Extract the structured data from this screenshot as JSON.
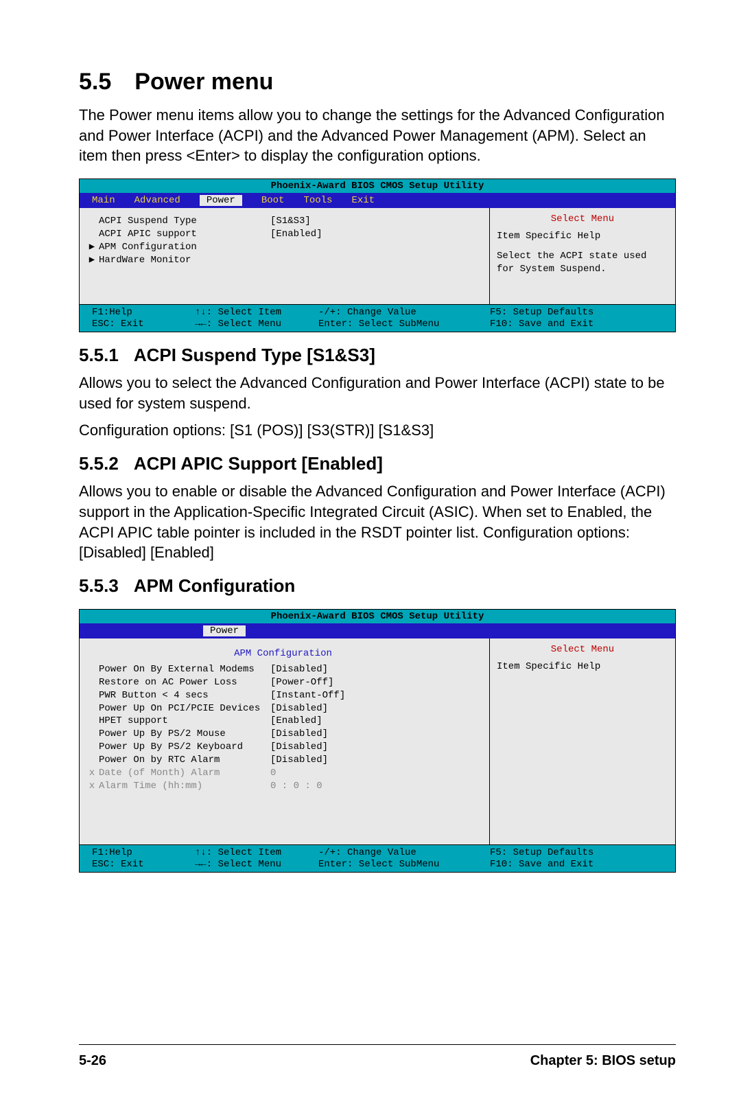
{
  "doc": {
    "section_num": "5.5",
    "section_title": "Power menu",
    "intro": "The Power menu items allow you to change the settings for the Advanced Configuration and Power Interface (ACPI) and the Advanced Power Management (APM). Select an item then press <Enter> to display the configuration options.",
    "sub1_num": "5.5.1",
    "sub1_title": "ACPI Suspend Type [S1&S3]",
    "sub1_p1": "Allows you to select the Advanced Configuration and Power Interface (ACPI) state to be used for system suspend.",
    "sub1_p2": "Configuration options: [S1 (POS)] [S3(STR)] [S1&S3]",
    "sub2_num": "5.5.2",
    "sub2_title": "ACPI APIC Support [Enabled]",
    "sub2_p1": "Allows you to enable or disable the Advanced Configuration and Power Interface (ACPI) support in the Application-Specific Integrated Circuit (ASIC). When set to Enabled, the ACPI APIC table pointer is included in the RSDT pointer list. Configuration options: [Disabled] [Enabled]",
    "sub3_num": "5.5.3",
    "sub3_title": "APM Configuration",
    "page_num": "5-26",
    "chapter": "Chapter 5: BIOS setup"
  },
  "bios1": {
    "title": "Phoenix-Award BIOS CMOS Setup Utility",
    "tabs": [
      "Main",
      "Advanced",
      "Power",
      "Boot",
      "Tools",
      "Exit"
    ],
    "active_tab": "Power",
    "items": [
      {
        "marker": "",
        "label": "ACPI Suspend Type",
        "value": "[S1&S3]"
      },
      {
        "marker": "",
        "label": "ACPI APIC support",
        "value": "[Enabled]"
      },
      {
        "marker": "▶",
        "label": "APM Configuration",
        "value": ""
      },
      {
        "marker": "▶",
        "label": "HardWare Monitor",
        "value": ""
      }
    ],
    "select_menu": "Select Menu",
    "help_title": "Item Specific Help",
    "help_body": "Select the ACPI state used for System  Suspend.",
    "footer": {
      "r1c1": "F1:Help",
      "r1c2": "↑↓: Select Item",
      "r1c3": "-/+: Change Value",
      "r1c4": "F5: Setup Defaults",
      "r2c1": "ESC: Exit",
      "r2c2": "→←: Select Menu",
      "r2c3": "Enter: Select SubMenu",
      "r2c4": "F10: Save and Exit"
    }
  },
  "bios2": {
    "title": "Phoenix-Award BIOS CMOS Setup Utility",
    "active_tab": "Power",
    "subhead": "APM Configuration",
    "items": [
      {
        "marker": "",
        "label": "Power On By External Modems",
        "value": "[Disabled]",
        "grey": false
      },
      {
        "marker": "",
        "label": "Restore on AC Power Loss",
        "value": "[Power-Off]",
        "grey": false
      },
      {
        "marker": "",
        "label": "PWR Button < 4 secs",
        "value": "[Instant-Off]",
        "grey": false
      },
      {
        "marker": "",
        "label": "Power Up On PCI/PCIE Devices",
        "value": "[Disabled]",
        "grey": false
      },
      {
        "marker": "",
        "label": "HPET support",
        "value": "[Enabled]",
        "grey": false
      },
      {
        "marker": "",
        "label": "Power Up By PS/2 Mouse",
        "value": "[Disabled]",
        "grey": false
      },
      {
        "marker": "",
        "label": "Power Up By PS/2 Keyboard",
        "value": "[Disabled]",
        "grey": false
      },
      {
        "marker": "",
        "label": "Power On by RTC Alarm",
        "value": "[Disabled]",
        "grey": false
      },
      {
        "marker": "x",
        "label": "Date (of Month) Alarm",
        "value": "    0",
        "grey": true
      },
      {
        "marker": "x",
        "label": "Alarm Time (hh:mm)",
        "value": "0 : 0 : 0",
        "grey": true
      }
    ],
    "select_menu": "Select Menu",
    "help_title": "Item Specific Help",
    "footer": {
      "r1c1": "F1:Help",
      "r1c2": "↑↓: Select Item",
      "r1c3": "-/+: Change Value",
      "r1c4": "F5: Setup Defaults",
      "r2c1": "ESC: Exit",
      "r2c2": "→←: Select Menu",
      "r2c3": "Enter: Select SubMenu",
      "r2c4": "F10: Save and Exit"
    }
  },
  "colors": {
    "teal": "#00a6b8",
    "blue": "#2018c0",
    "yellow": "#efd040",
    "panel": "#e8e8e8",
    "red": "#c00000",
    "grey": "#888888"
  }
}
